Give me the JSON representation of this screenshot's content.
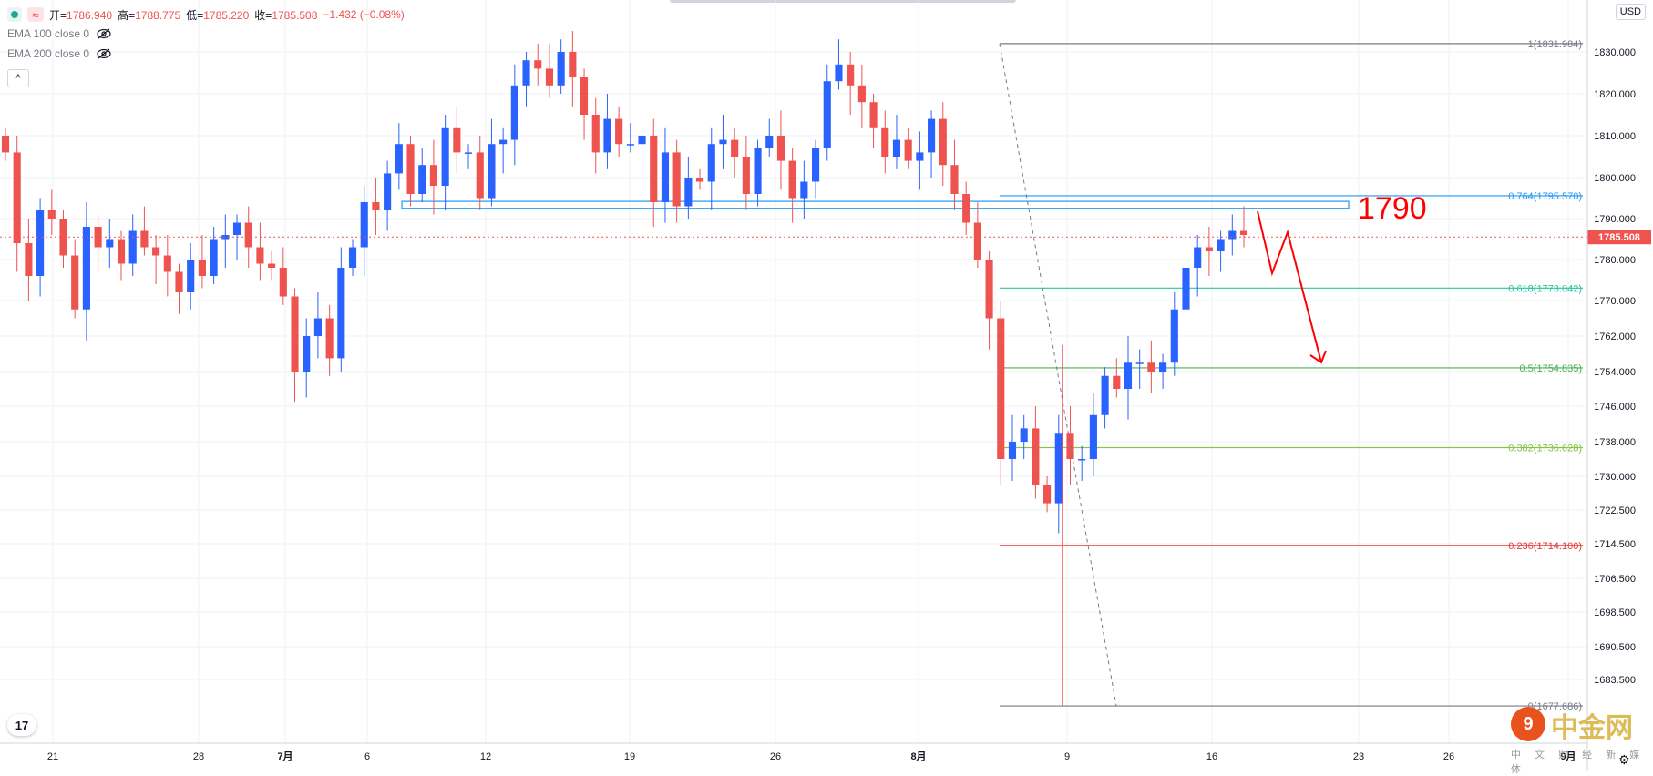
{
  "legend": {
    "open_label": "开",
    "open": "1786.940",
    "high_label": "高",
    "high": "1788.775",
    "low_label": "低",
    "low": "1785.220",
    "close_label": "收",
    "close": "1785.508",
    "change": "−1.432 (−0.08%)",
    "indicators": [
      "EMA 100 close 0",
      "EMA 200 close 0"
    ],
    "collapse_icon": "^"
  },
  "currency": "USD",
  "tv_logo": "17",
  "watermark": {
    "name": "中金网",
    "subtitle": "中 文 财 经 新 媒 体",
    "logo": "9"
  },
  "colors": {
    "up": "#2962ff",
    "down": "#ef5350",
    "grid": "#eef0f3",
    "annotation": "#ff0000",
    "fib_0764": "#2196f3",
    "fib_0618": "#26c6a0",
    "fib_05": "#4caf50",
    "fib_0382": "#8bc34a",
    "fib_0236": "#e53935",
    "fib_edge": "#787b86"
  },
  "chart_data": {
    "type": "candlestick",
    "ylim": [
      1670,
      1836
    ],
    "ylabel_ticks": [
      "1830.000",
      "1820.000",
      "1810.000",
      "1800.000",
      "1790.000",
      "1780.000",
      "1770.000",
      "1762.000",
      "1754.000",
      "1746.000",
      "1738.000",
      "1730.000",
      "1722.500",
      "1714.500",
      "1706.500",
      "1698.500",
      "1690.500",
      "1683.500"
    ],
    "x_ticks": [
      "21",
      "28",
      "7月",
      "6",
      "12",
      "19",
      "26",
      "8月",
      "9",
      "16",
      "23",
      "26",
      "9月"
    ],
    "last_price": "1785.508",
    "fibonacci": [
      {
        "label": "1(1831.984)",
        "value": 1831.984
      },
      {
        "label": "0.764(1795.570)",
        "value": 1795.57
      },
      {
        "label": "0.618(1773.042)",
        "value": 1773.042
      },
      {
        "label": "0.5(1754.835)",
        "value": 1754.835
      },
      {
        "label": "0.382(1736.628)",
        "value": 1736.628
      },
      {
        "label": "0.236(1714.100)",
        "value": 1714.1
      },
      {
        "label": "0(1677.686)",
        "value": 1677.686
      }
    ],
    "annotation": {
      "text": "1790",
      "value": 1790
    },
    "resistance_zone": [
      1792.5,
      1794.2
    ],
    "series": [
      {
        "name": "XAUUSD",
        "close": [
          1806,
          1784,
          1776,
          1792,
          1790,
          1781,
          1768,
          1788,
          1783,
          1785,
          1779,
          1787,
          1783,
          1781,
          1777,
          1772,
          1780,
          1776,
          1785,
          1786,
          1789,
          1783,
          1779,
          1778,
          1771,
          1754,
          1762,
          1766,
          1757,
          1778,
          1783,
          1794,
          1792,
          1801,
          1808,
          1796,
          1803,
          1798,
          1812,
          1806,
          1806,
          1795,
          1808,
          1809,
          1822,
          1828,
          1826,
          1822,
          1830,
          1824,
          1815,
          1806,
          1814,
          1808,
          1808,
          1810,
          1794,
          1806,
          1793,
          1800,
          1799,
          1808,
          1809,
          1805,
          1796,
          1807,
          1810,
          1804,
          1795,
          1799,
          1807,
          1823,
          1827,
          1822,
          1818,
          1812,
          1805,
          1809,
          1804,
          1806,
          1814,
          1803,
          1796,
          1789,
          1780,
          1766,
          1734,
          1738,
          1741,
          1728,
          1724,
          1740,
          1734,
          1734,
          1744,
          1753,
          1750,
          1756,
          1756,
          1754,
          1756,
          1768,
          1778,
          1783,
          1782,
          1785,
          1787,
          1786
        ]
      }
    ]
  }
}
